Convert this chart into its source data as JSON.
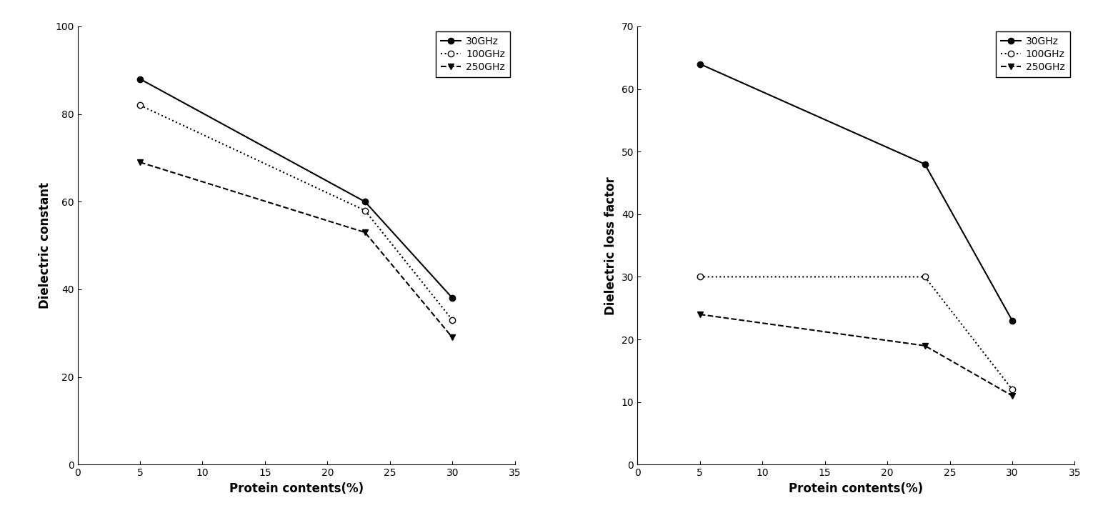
{
  "x": [
    5,
    23,
    30
  ],
  "left_chart": {
    "ylabel": "Dielectric constant",
    "xlabel": "Protein contents(%)",
    "ylim": [
      0,
      100
    ],
    "xlim": [
      0,
      35
    ],
    "yticks": [
      0,
      20,
      40,
      60,
      80,
      100
    ],
    "xticks": [
      0,
      5,
      10,
      15,
      20,
      25,
      30,
      35
    ],
    "series": [
      {
        "label": "30GHz",
        "y": [
          88,
          60,
          38
        ],
        "linestyle": "-",
        "marker": "o",
        "markerfacecolor": "black",
        "markersize": 6
      },
      {
        "label": "100GHz",
        "y": [
          82,
          58,
          33
        ],
        "linestyle": ":",
        "marker": "o",
        "markerfacecolor": "white",
        "markersize": 6
      },
      {
        "label": "250GHz",
        "y": [
          69,
          53,
          29
        ],
        "linestyle": "--",
        "marker": "v",
        "markerfacecolor": "black",
        "markersize": 6
      }
    ]
  },
  "right_chart": {
    "ylabel": "Dielectric loss factor",
    "xlabel": "Protein contents(%)",
    "ylim": [
      0,
      70
    ],
    "xlim": [
      0,
      35
    ],
    "yticks": [
      0,
      10,
      20,
      30,
      40,
      50,
      60,
      70
    ],
    "xticks": [
      0,
      5,
      10,
      15,
      20,
      25,
      30,
      35
    ],
    "series": [
      {
        "label": "30GHz",
        "y": [
          64,
          48,
          23
        ],
        "linestyle": "-",
        "marker": "o",
        "markerfacecolor": "black",
        "markersize": 6
      },
      {
        "label": "100GHz",
        "y": [
          30,
          30,
          12
        ],
        "linestyle": ":",
        "marker": "o",
        "markerfacecolor": "white",
        "markersize": 6
      },
      {
        "label": "250GHz",
        "y": [
          24,
          19,
          11
        ],
        "linestyle": "--",
        "marker": "v",
        "markerfacecolor": "black",
        "markersize": 6
      }
    ]
  },
  "line_color": "black",
  "legend_fontsize": 10,
  "axis_label_fontsize": 12,
  "tick_fontsize": 10
}
